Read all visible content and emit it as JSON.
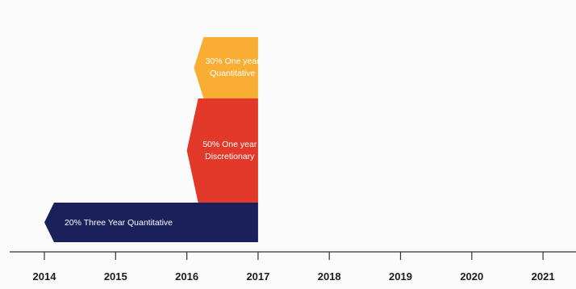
{
  "axis": {
    "years": [
      "2014",
      "2015",
      "2016",
      "2017",
      "2018",
      "2019",
      "2020",
      "2021"
    ]
  },
  "segments": [
    {
      "label_lines": [
        "30% One year",
        "Quantitative"
      ],
      "color": "#f9ad33",
      "start_year": 2016.1,
      "end_year": 2017
    },
    {
      "label_lines": [
        "50% One year",
        "Discretionary"
      ],
      "color": "#e3392b",
      "start_year": 2016.0,
      "end_year": 2017
    },
    {
      "label_lines": [
        "20% Three Year Quantitative"
      ],
      "color": "#19205a",
      "start_year": 2014,
      "end_year": 2017
    }
  ],
  "colors": {
    "axis": "#333333",
    "background": "#fbfbfb"
  }
}
